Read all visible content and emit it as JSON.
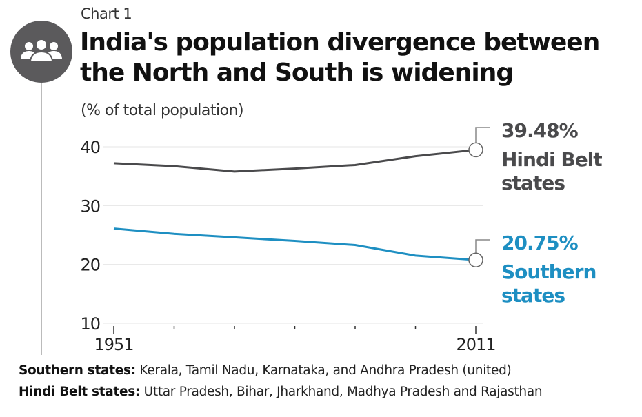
{
  "header": {
    "kicker": "Chart 1",
    "title_line1": "India's population divergence between",
    "title_line2": "the North and South is widening",
    "subtitle": "(% of total population)",
    "icon": "people-group-icon"
  },
  "footnotes": [
    {
      "label": "Southern states:",
      "text": " Kerala, Tamil Nadu, Karnataka, and Andhra Pradesh (united)"
    },
    {
      "label": "Hindi Belt states:",
      "text": " Uttar Pradesh, Bihar, Jharkhand, Madhya Pradesh and Rajasthan"
    }
  ],
  "chart_data": {
    "type": "line",
    "title": "India's population divergence between the North and South is widening",
    "ylabel": "(% of total population)",
    "x": [
      1951,
      1961,
      1971,
      1981,
      1991,
      2001,
      2011
    ],
    "x_tick_labels": [
      "1951",
      "2011"
    ],
    "y_ticks": [
      10,
      20,
      30,
      40
    ],
    "ylim": [
      10,
      40
    ],
    "grid": true,
    "series": [
      {
        "name": "Hindi Belt states",
        "label_value": "39.48%",
        "label_lines": [
          "Hindi Belt",
          "states"
        ],
        "color": "#4a4a4c",
        "values": [
          37.2,
          36.7,
          35.8,
          36.3,
          36.9,
          38.4,
          39.48
        ]
      },
      {
        "name": "Southern states",
        "label_value": "20.75%",
        "label_lines": [
          "Southern",
          "states"
        ],
        "color": "#1e8fc2",
        "values": [
          26.1,
          25.2,
          24.6,
          24.0,
          23.3,
          21.5,
          20.75
        ]
      }
    ]
  }
}
